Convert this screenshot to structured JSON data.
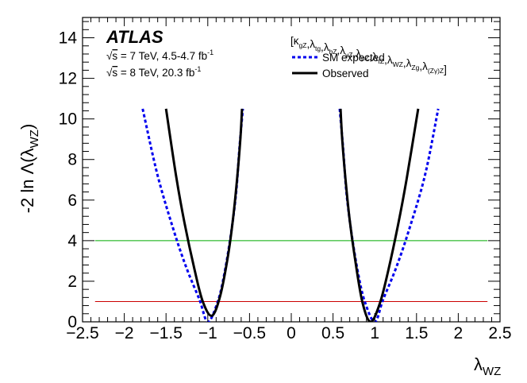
{
  "chart_data": {
    "type": "line",
    "brand": "ATLAS",
    "energy_lines": [
      {
        "prefix": "s",
        "text": " = 7 TeV, 4.5-4.7 fb",
        "sup": "-1"
      },
      {
        "prefix": "s",
        "text": " = 8 TeV, 20.3 fb",
        "sup": "-1"
      }
    ],
    "legend_header": {
      "parts": [
        {
          "t": "[",
          "sub": ""
        },
        {
          "t": "κ",
          "sub": "gZ"
        },
        {
          "t": ",",
          "sub": ""
        },
        {
          "t": "λ",
          "sub": "tg"
        },
        {
          "t": ",",
          "sub": ""
        },
        {
          "t": "λ",
          "sub": "bZ"
        },
        {
          "t": ",",
          "sub": ""
        },
        {
          "t": "λ",
          "sub": "γZ"
        },
        {
          "t": ",",
          "sub": ""
        },
        {
          "t": "λ",
          "sub": "μZ"
        },
        {
          "t": ",",
          "sub": ""
        },
        {
          "t": "λ",
          "sub": "τZ"
        },
        {
          "t": ",",
          "sub": ""
        },
        {
          "t": "λ",
          "sub": "WZ"
        },
        {
          "t": ",",
          "sub": ""
        },
        {
          "t": "λ",
          "sub": "Zg"
        },
        {
          "t": ",",
          "sub": ""
        },
        {
          "t": "λ",
          "sub": "(Zγ)Z"
        },
        {
          "t": "]",
          "sub": ""
        }
      ]
    },
    "xlabel": {
      "main": "λ",
      "sub": "WZ"
    },
    "ylabel": {
      "pre": "-2 ln Λ(λ",
      "sub": "WZ",
      "post": ")"
    },
    "xlim": [
      -2.5,
      2.5
    ],
    "ylim": [
      0,
      15
    ],
    "xticks": [
      "−2.5",
      "−2",
      "−1.5",
      "−1",
      "−0.5",
      "0",
      "0.5",
      "1",
      "1.5",
      "2",
      "2.5"
    ],
    "xtick_values": [
      -2.5,
      -2,
      -1.5,
      -1,
      -0.5,
      0,
      0.5,
      1,
      1.5,
      2,
      2.5
    ],
    "yticks": [
      "0",
      "2",
      "4",
      "6",
      "8",
      "10",
      "12",
      "14"
    ],
    "ytick_values": [
      0,
      2,
      4,
      6,
      8,
      10,
      12,
      14
    ],
    "reference_lines": [
      {
        "y": 1,
        "color": "#cc0000"
      },
      {
        "y": 4,
        "color": "#00aa00"
      }
    ],
    "reference_line_xrange": [
      -2.35,
      2.35
    ],
    "series": [
      {
        "name": "SM expected",
        "style": "dashed",
        "color": "#0000ee",
        "branches": [
          {
            "x": [
              -1.78,
              -1.6,
              -1.4,
              -1.25,
              -1.1,
              -1.0,
              -0.88,
              -0.8,
              -0.72,
              -0.66,
              -0.62,
              -0.58
            ],
            "y": [
              10.5,
              7.2,
              4.4,
              2.6,
              1.1,
              0.0,
              1.0,
              2.4,
              4.4,
              6.4,
              8.6,
              10.5
            ]
          },
          {
            "x": [
              0.58,
              0.62,
              0.66,
              0.72,
              0.8,
              0.88,
              1.0,
              1.1,
              1.25,
              1.4,
              1.6,
              1.76
            ],
            "y": [
              10.5,
              8.6,
              6.4,
              4.4,
              2.4,
              1.0,
              0.0,
              1.1,
              2.6,
              4.4,
              7.2,
              10.5
            ]
          }
        ]
      },
      {
        "name": "Observed",
        "style": "solid",
        "color": "#000000",
        "branches": [
          {
            "x": [
              -1.5,
              -1.38,
              -1.28,
              -1.16,
              -1.06,
              -0.95,
              -0.85,
              -0.76,
              -0.7,
              -0.65,
              -0.61,
              -0.59
            ],
            "y": [
              10.5,
              7.2,
              4.9,
              2.6,
              1.0,
              0.3,
              1.3,
              3.2,
              5.0,
              7.0,
              9.0,
              10.5
            ]
          },
          {
            "x": [
              0.59,
              0.61,
              0.65,
              0.7,
              0.76,
              0.85,
              0.95,
              1.06,
              1.16,
              1.28,
              1.38,
              1.52
            ],
            "y": [
              10.5,
              9.0,
              7.0,
              5.0,
              3.2,
              1.0,
              0.0,
              0.9,
              2.5,
              4.8,
              7.0,
              10.5
            ]
          }
        ]
      }
    ]
  }
}
